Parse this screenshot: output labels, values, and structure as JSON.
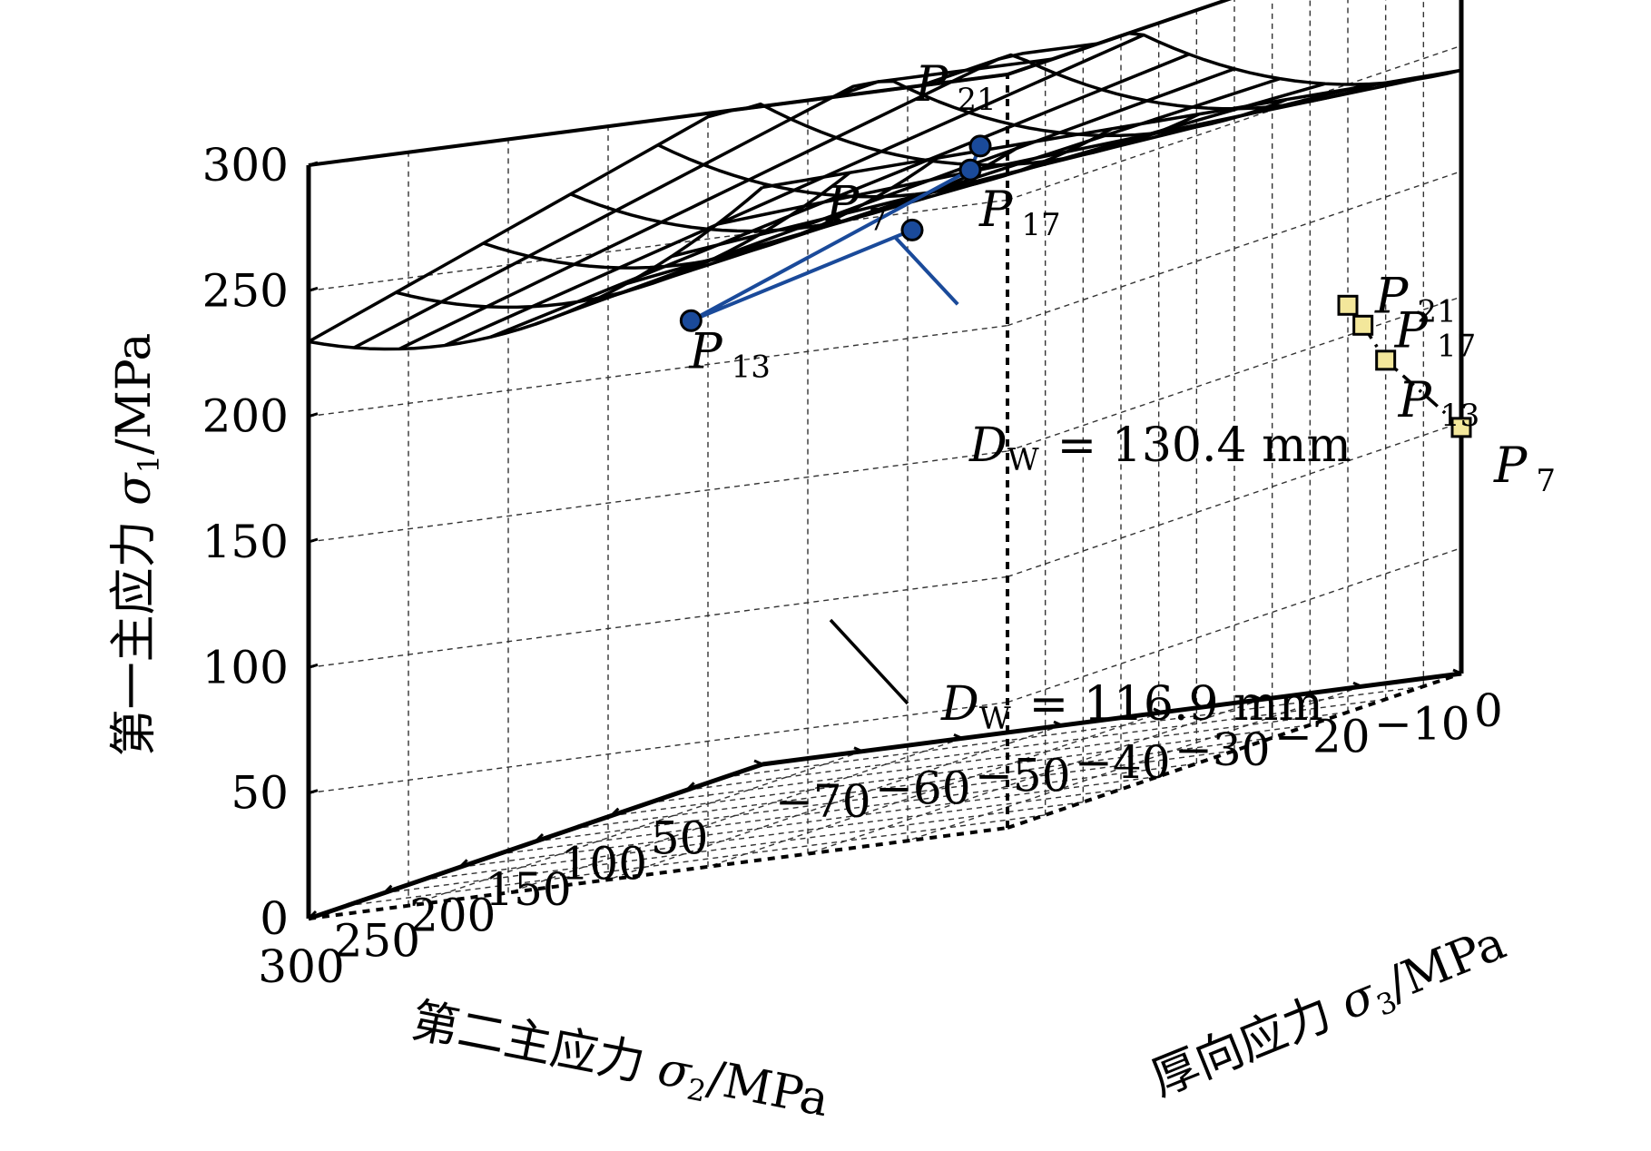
{
  "chart_data": {
    "type": "surface3d",
    "axes": {
      "z": {
        "label_prefix": "第一主应力 ",
        "label_symbol": "σ",
        "label_sub": "1",
        "label_suffix": "/MPa",
        "range": [
          0,
          300
        ],
        "ticks": [
          "0",
          "50",
          "100",
          "150",
          "200",
          "250",
          "300"
        ]
      },
      "x": {
        "label_prefix": "第二主应力 ",
        "label_symbol": "σ",
        "label_sub": "2",
        "label_suffix": "/MPa",
        "range": [
          0,
          300
        ],
        "ticks": [
          "50",
          "100",
          "150",
          "200",
          "250",
          "300"
        ]
      },
      "y": {
        "label_prefix": "厚向应力 ",
        "label_symbol": "σ",
        "label_sub": "3",
        "label_suffix": "/MPa",
        "range": [
          -70,
          0
        ],
        "ticks": [
          "−70",
          "−60",
          "−50",
          "−40",
          "−30",
          "−20",
          "−10",
          "0"
        ]
      }
    },
    "grid": true,
    "series": [
      {
        "annotation": "= 130.4 mm",
        "color": "#1a4a9a",
        "marker": "circle",
        "points": [
          {
            "label": "7",
            "x": 0,
            "y": -55,
            "z": 205
          },
          {
            "label": "13",
            "x": 100,
            "y": -62,
            "z": 193
          },
          {
            "label": "17",
            "x": 285,
            "y": -6,
            "z": 262
          },
          {
            "label": "21",
            "x": 285,
            "y": -5,
            "z": 271
          }
        ]
      },
      {
        "annotation": "= 116.9 mm",
        "color": "#f3e79b",
        "marker": "square",
        "points": [
          {
            "label": "7",
            "x": 0,
            "y": 0,
            "z": 98
          },
          {
            "label": "13",
            "x": 50,
            "y": 0,
            "z": 135
          },
          {
            "label": "17",
            "x": 65,
            "y": 0,
            "z": 152
          },
          {
            "label": "21",
            "x": 75,
            "y": 0,
            "z": 162
          }
        ]
      }
    ],
    "point_letter": "P",
    "dw_letter": "D",
    "dw_sub": "W"
  }
}
